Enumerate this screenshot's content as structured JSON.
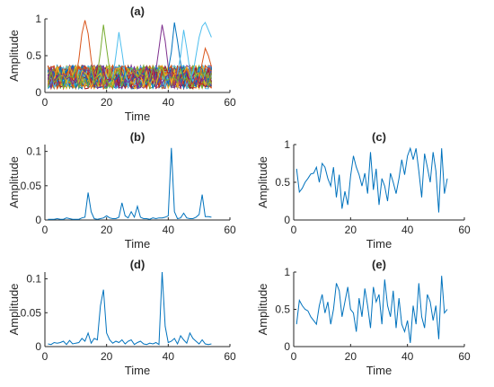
{
  "chart_data": [
    {
      "id": "a",
      "type": "line",
      "title": "(a)",
      "xlabel": "Time",
      "ylabel": "Amplitude",
      "xlim": [
        0,
        60
      ],
      "ylim": [
        0,
        1.0
      ],
      "xticks": [
        0,
        20,
        40,
        60
      ],
      "yticks": [
        0,
        0.5,
        1
      ],
      "ytick_labels": [
        "0",
        "0.5",
        "1"
      ],
      "grid": false,
      "series_count": 54,
      "note_peaks": [
        {
          "x": [
            10,
            11,
            12,
            13,
            14,
            15,
            16
          ],
          "y": [
            0.2,
            0.45,
            0.8,
            0.98,
            0.8,
            0.45,
            0.2
          ],
          "color": "#d95319"
        },
        {
          "x": [
            17,
            18,
            19,
            20,
            21,
            22
          ],
          "y": [
            0.25,
            0.55,
            0.92,
            0.6,
            0.3,
            0.15
          ],
          "color": "#77ac30"
        },
        {
          "x": [
            22,
            23,
            24,
            25,
            26,
            27
          ],
          "y": [
            0.2,
            0.5,
            0.82,
            0.55,
            0.25,
            0.15
          ],
          "color": "#4dbeee"
        },
        {
          "x": [
            36,
            37,
            38,
            39,
            40,
            41
          ],
          "y": [
            0.3,
            0.6,
            0.92,
            0.7,
            0.35,
            0.2
          ],
          "color": "#7e2f8e"
        },
        {
          "x": [
            40,
            41,
            42,
            43,
            44,
            45
          ],
          "y": [
            0.3,
            0.55,
            0.95,
            0.7,
            0.4,
            0.2
          ],
          "color": "#0072bd"
        },
        {
          "x": [
            43,
            44,
            45,
            46,
            47,
            48
          ],
          "y": [
            0.25,
            0.5,
            0.85,
            0.6,
            0.3,
            0.15
          ],
          "color": "#4dbeee"
        },
        {
          "x": [
            48,
            49,
            50,
            51,
            52,
            53,
            54
          ],
          "y": [
            0.25,
            0.5,
            0.75,
            0.9,
            0.95,
            0.85,
            0.75
          ],
          "color": "#4dbeee"
        },
        {
          "x": [
            50,
            51,
            52,
            53,
            54
          ],
          "y": [
            0.2,
            0.4,
            0.6,
            0.5,
            0.35
          ],
          "color": "#d95319"
        }
      ]
    },
    {
      "id": "b",
      "type": "line",
      "title": "(b)",
      "xlabel": "Time",
      "ylabel": "Amplitude",
      "xlim": [
        0,
        60
      ],
      "ylim": [
        0,
        0.11
      ],
      "xticks": [
        0,
        20,
        40,
        60
      ],
      "yticks": [
        0,
        0.05,
        0.1
      ],
      "ytick_labels": [
        "0",
        "0.05",
        "0.1"
      ],
      "grid": false,
      "x": [
        1,
        2,
        3,
        4,
        5,
        6,
        7,
        8,
        9,
        10,
        11,
        12,
        13,
        14,
        15,
        16,
        17,
        18,
        19,
        20,
        21,
        22,
        23,
        24,
        25,
        26,
        27,
        28,
        29,
        30,
        31,
        32,
        33,
        34,
        35,
        36,
        37,
        38,
        39,
        40,
        41,
        42,
        43,
        44,
        45,
        46,
        47,
        48,
        49,
        50,
        51,
        52,
        53,
        54
      ],
      "y": [
        0.001,
        0.001,
        0.001,
        0.002,
        0.001,
        0.001,
        0.003,
        0.002,
        0.001,
        0.001,
        0.001,
        0.003,
        0.004,
        0.04,
        0.012,
        0.002,
        0.001,
        0.002,
        0.003,
        0.006,
        0.003,
        0.002,
        0.002,
        0.004,
        0.025,
        0.006,
        0.003,
        0.012,
        0.004,
        0.02,
        0.004,
        0.002,
        0.002,
        0.001,
        0.003,
        0.002,
        0.003,
        0.003,
        0.004,
        0.006,
        0.105,
        0.012,
        0.002,
        0.003,
        0.01,
        0.003,
        0.002,
        0.002,
        0.004,
        0.008,
        0.037,
        0.005,
        0.005,
        0.004
      ],
      "color": "#0072bd"
    },
    {
      "id": "c",
      "type": "line",
      "title": "(c)",
      "xlabel": "Time",
      "ylabel": "Amplitude",
      "xlim": [
        0,
        60
      ],
      "ylim": [
        0,
        1.0
      ],
      "xticks": [
        0,
        20,
        40,
        60
      ],
      "yticks": [
        0,
        0.5,
        1
      ],
      "ytick_labels": [
        "0",
        "0.5",
        "1"
      ],
      "grid": false,
      "x": [
        1,
        2,
        3,
        4,
        5,
        6,
        7,
        8,
        9,
        10,
        11,
        12,
        13,
        14,
        15,
        16,
        17,
        18,
        19,
        20,
        21,
        22,
        23,
        24,
        25,
        26,
        27,
        28,
        29,
        30,
        31,
        32,
        33,
        34,
        35,
        36,
        37,
        38,
        39,
        40,
        41,
        42,
        43,
        44,
        45,
        46,
        47,
        48,
        49,
        50,
        51,
        52,
        53,
        54
      ],
      "y": [
        0.68,
        0.37,
        0.42,
        0.5,
        0.55,
        0.61,
        0.62,
        0.7,
        0.5,
        0.75,
        0.7,
        0.55,
        0.45,
        0.7,
        0.3,
        0.6,
        0.15,
        0.38,
        0.2,
        0.58,
        0.85,
        0.7,
        0.6,
        0.45,
        0.62,
        0.35,
        0.9,
        0.4,
        0.68,
        0.2,
        0.55,
        0.45,
        0.25,
        0.62,
        0.5,
        0.35,
        0.55,
        0.8,
        0.6,
        0.85,
        0.95,
        0.8,
        0.95,
        0.65,
        0.3,
        0.88,
        0.7,
        0.5,
        0.9,
        0.65,
        0.1,
        0.95,
        0.35,
        0.55
      ],
      "color": "#0072bd"
    },
    {
      "id": "d",
      "type": "line",
      "title": "(d)",
      "xlabel": "Time",
      "ylabel": "Amplitude",
      "xlim": [
        0,
        60
      ],
      "ylim": [
        0,
        0.11
      ],
      "xticks": [
        0,
        20,
        40,
        60
      ],
      "yticks": [
        0,
        0.05,
        0.1
      ],
      "ytick_labels": [
        "0",
        "0.05",
        "0.1"
      ],
      "grid": false,
      "x": [
        1,
        2,
        3,
        4,
        5,
        6,
        7,
        8,
        9,
        10,
        11,
        12,
        13,
        14,
        15,
        16,
        17,
        18,
        19,
        20,
        21,
        22,
        23,
        24,
        25,
        26,
        27,
        28,
        29,
        30,
        31,
        32,
        33,
        34,
        35,
        36,
        37,
        38,
        39,
        40,
        41,
        42,
        43,
        44,
        45,
        46,
        47,
        48,
        49,
        50,
        51,
        52,
        53,
        54
      ],
      "y": [
        0.004,
        0.003,
        0.006,
        0.005,
        0.006,
        0.008,
        0.003,
        0.009,
        0.004,
        0.005,
        0.006,
        0.012,
        0.008,
        0.02,
        0.005,
        0.012,
        0.01,
        0.06,
        0.084,
        0.02,
        0.01,
        0.005,
        0.008,
        0.006,
        0.01,
        0.004,
        0.008,
        0.01,
        0.003,
        0.006,
        0.008,
        0.004,
        0.003,
        0.005,
        0.004,
        0.006,
        0.003,
        0.11,
        0.03,
        0.006,
        0.008,
        0.012,
        0.004,
        0.016,
        0.01,
        0.005,
        0.02,
        0.012,
        0.008,
        0.004,
        0.01,
        0.004,
        0.003,
        0.004
      ],
      "color": "#0072bd"
    },
    {
      "id": "e",
      "type": "line",
      "title": "(e)",
      "xlabel": "Time",
      "ylabel": "Amplitude",
      "xlim": [
        0,
        60
      ],
      "ylim": [
        0,
        1.0
      ],
      "xticks": [
        0,
        20,
        40,
        60
      ],
      "yticks": [
        0,
        0.5,
        1
      ],
      "ytick_labels": [
        "0",
        "0.5",
        "1"
      ],
      "grid": false,
      "x": [
        1,
        2,
        3,
        4,
        5,
        6,
        7,
        8,
        9,
        10,
        11,
        12,
        13,
        14,
        15,
        16,
        17,
        18,
        19,
        20,
        21,
        22,
        23,
        24,
        25,
        26,
        27,
        28,
        29,
        30,
        31,
        32,
        33,
        34,
        35,
        36,
        37,
        38,
        39,
        40,
        41,
        42,
        43,
        44,
        45,
        46,
        47,
        48,
        49,
        50,
        51,
        52,
        53,
        54
      ],
      "y": [
        0.3,
        0.62,
        0.55,
        0.5,
        0.48,
        0.4,
        0.35,
        0.3,
        0.55,
        0.7,
        0.45,
        0.6,
        0.3,
        0.5,
        0.85,
        0.75,
        0.4,
        0.6,
        0.8,
        0.5,
        0.45,
        0.2,
        0.65,
        0.4,
        0.78,
        0.55,
        0.25,
        0.8,
        0.6,
        0.7,
        0.3,
        0.9,
        0.55,
        0.4,
        0.75,
        0.25,
        0.65,
        0.3,
        0.2,
        0.35,
        0.05,
        0.55,
        0.3,
        0.85,
        0.4,
        0.25,
        0.7,
        0.6,
        0.35,
        0.55,
        0.1,
        0.95,
        0.45,
        0.5
      ],
      "color": "#0072bd"
    }
  ]
}
